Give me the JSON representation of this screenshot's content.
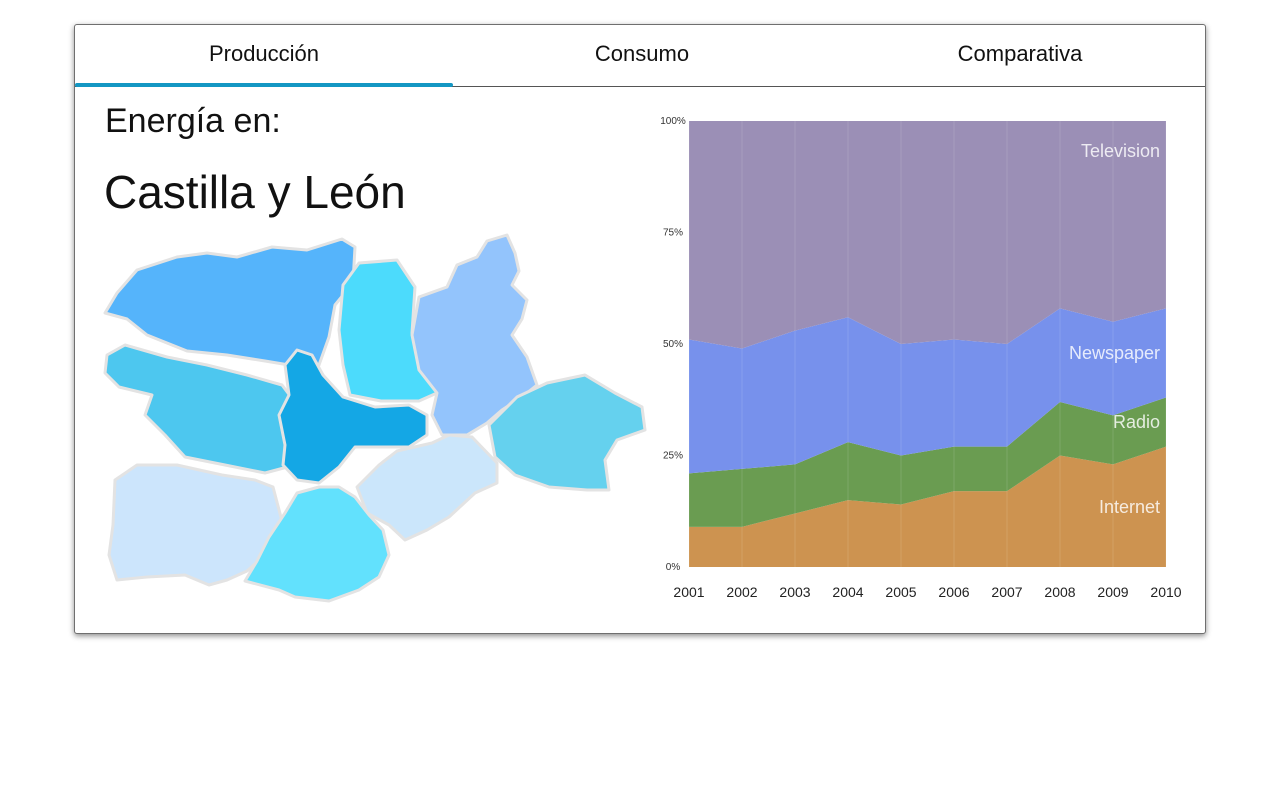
{
  "tabs": [
    {
      "label": "Producción",
      "selected": true
    },
    {
      "label": "Consumo",
      "selected": false
    },
    {
      "label": "Comparativa",
      "selected": false
    }
  ],
  "accent_color": "#1497c3",
  "heading": {
    "prefix": "Energía en:",
    "region": "Castilla y León"
  },
  "map": {
    "provinces": [
      {
        "id": "leon",
        "color": "#55b4fb"
      },
      {
        "id": "palencia",
        "color": "#4cdbfc"
      },
      {
        "id": "burgos",
        "color": "#93c4fc"
      },
      {
        "id": "zamora",
        "color": "#4dc7ef"
      },
      {
        "id": "valladolid",
        "color": "#14a7e5"
      },
      {
        "id": "soria",
        "color": "#65d1ee"
      },
      {
        "id": "salamanca",
        "color": "#cce5fc"
      },
      {
        "id": "segovia",
        "color": "#cbe6fb"
      },
      {
        "id": "avila",
        "color": "#62e1fd"
      }
    ]
  },
  "chart_data": {
    "type": "area",
    "stacked": true,
    "percent": true,
    "x": [
      "2001",
      "2002",
      "2003",
      "2004",
      "2005",
      "2006",
      "2007",
      "2008",
      "2009",
      "2010"
    ],
    "y_ticks": [
      "0%",
      "25%",
      "50%",
      "75%",
      "100%"
    ],
    "ylim": [
      0,
      100
    ],
    "series": [
      {
        "name": "Internet",
        "color": "#cd9350",
        "values": [
          9,
          9,
          12,
          15,
          14,
          17,
          17,
          25,
          23,
          27
        ]
      },
      {
        "name": "Radio",
        "color": "#6a9c51",
        "values": [
          12,
          13,
          11,
          13,
          11,
          10,
          10,
          12,
          11,
          11
        ]
      },
      {
        "name": "Newspaper",
        "color": "#7791ec",
        "values": [
          30,
          27,
          30,
          28,
          25,
          24,
          23,
          21,
          21,
          20
        ]
      },
      {
        "name": "Television",
        "color": "#9b8fb6",
        "values": [
          49,
          51,
          47,
          44,
          50,
          49,
          50,
          42,
          45,
          42
        ]
      }
    ]
  }
}
